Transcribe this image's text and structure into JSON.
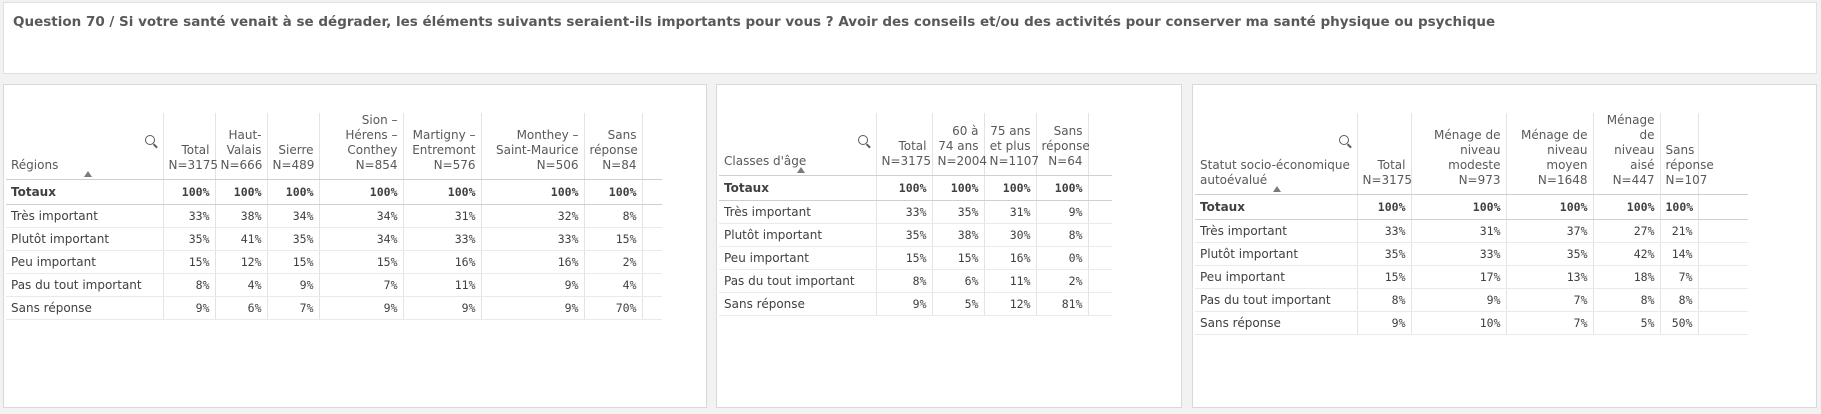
{
  "question": "Question 70 / Si votre santé venait à se dégrader, les éléments suivants seraient-ils importants pour vous ? Avoir des conseils et/ou des activités pour conserver ma santé physique ou psychique",
  "tables": {
    "regions": {
      "dimension": "Régions",
      "columns": [
        "Total\nN=3175",
        "Haut-Valais\nN=666",
        "Sierre\nN=489",
        "Sion – Hérens – Conthey\nN=854",
        "Martigny – Entremont\nN=576",
        "Monthey – Saint-Maurice\nN=506",
        "Sans réponse\nN=84"
      ],
      "totals_label": "Totaux",
      "totals": [
        "100%",
        "100%",
        "100%",
        "100%",
        "100%",
        "100%",
        "100%"
      ],
      "rows": [
        {
          "label": "Très important",
          "values": [
            "33%",
            "38%",
            "34%",
            "34%",
            "31%",
            "32%",
            "8%"
          ]
        },
        {
          "label": "Plutôt important",
          "values": [
            "35%",
            "41%",
            "35%",
            "34%",
            "33%",
            "33%",
            "15%"
          ]
        },
        {
          "label": "Peu important",
          "values": [
            "15%",
            "12%",
            "15%",
            "15%",
            "16%",
            "16%",
            "2%"
          ]
        },
        {
          "label": "Pas du tout important",
          "values": [
            "8%",
            "4%",
            "9%",
            "7%",
            "11%",
            "9%",
            "4%"
          ]
        },
        {
          "label": "Sans réponse",
          "values": [
            "9%",
            "6%",
            "7%",
            "9%",
            "9%",
            "9%",
            "70%"
          ]
        }
      ]
    },
    "ages": {
      "dimension": "Classes d'âge",
      "columns": [
        "Total\nN=3175",
        "60 à 74 ans\nN=2004",
        "75 ans et plus\nN=1107",
        "Sans réponse\nN=64"
      ],
      "totals_label": "Totaux",
      "totals": [
        "100%",
        "100%",
        "100%",
        "100%"
      ],
      "rows": [
        {
          "label": "Très important",
          "values": [
            "33%",
            "35%",
            "31%",
            "9%"
          ]
        },
        {
          "label": "Plutôt important",
          "values": [
            "35%",
            "38%",
            "30%",
            "8%"
          ]
        },
        {
          "label": "Peu important",
          "values": [
            "15%",
            "15%",
            "16%",
            "0%"
          ]
        },
        {
          "label": "Pas du tout important",
          "values": [
            "8%",
            "6%",
            "11%",
            "2%"
          ]
        },
        {
          "label": "Sans réponse",
          "values": [
            "9%",
            "5%",
            "12%",
            "81%"
          ]
        }
      ]
    },
    "status": {
      "dimension": "Statut socio-économique autoévalué",
      "columns": [
        "Total\nN=3175",
        "Ménage de niveau modeste\nN=973",
        "Ménage de niveau moyen\nN=1648",
        "Ménage de niveau aisé\nN=447",
        "Sans réponse\nN=107"
      ],
      "totals_label": "Totaux",
      "totals": [
        "100%",
        "100%",
        "100%",
        "100%",
        "100%"
      ],
      "rows": [
        {
          "label": "Très important",
          "values": [
            "33%",
            "31%",
            "37%",
            "27%",
            "21%"
          ]
        },
        {
          "label": "Plutôt important",
          "values": [
            "35%",
            "33%",
            "35%",
            "42%",
            "14%"
          ]
        },
        {
          "label": "Peu important",
          "values": [
            "15%",
            "17%",
            "13%",
            "18%",
            "7%"
          ]
        },
        {
          "label": "Pas du tout important",
          "values": [
            "8%",
            "9%",
            "7%",
            "8%",
            "8%"
          ]
        },
        {
          "label": "Sans réponse",
          "values": [
            "9%",
            "10%",
            "7%",
            "5%",
            "50%"
          ]
        }
      ]
    }
  }
}
